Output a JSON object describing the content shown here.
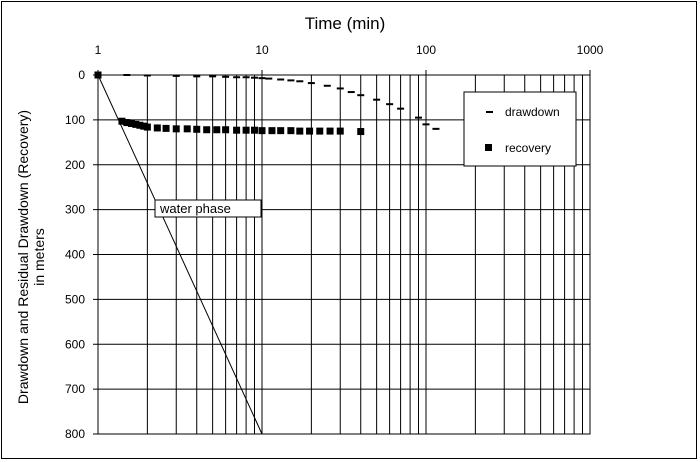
{
  "chart_data": {
    "type": "scatter",
    "title": "",
    "xlabel": "Time (min)",
    "ylabel_line1": "Drawdown and Residual Drawdown (Recovery)",
    "ylabel_line2": "in meters",
    "xscale": "log",
    "xlim": [
      1,
      1000
    ],
    "ylim": [
      0,
      800
    ],
    "y_inverted": true,
    "x_axis_position": "top",
    "grid": "vertical log gridlines and horizontal major gridlines",
    "xticks": [
      "1",
      "10",
      "100",
      "1000"
    ],
    "yticks": [
      "0",
      "100",
      "200",
      "300",
      "400",
      "500",
      "600",
      "700",
      "800"
    ],
    "legend_position": "top-right",
    "series": [
      {
        "name": "drawdown",
        "marker": "dash",
        "color": "#000000",
        "x": [
          1.5,
          2,
          3,
          4,
          5,
          6,
          7,
          8,
          9,
          10,
          11,
          13,
          15,
          17,
          20,
          25,
          30,
          35,
          40,
          50,
          60,
          70,
          90,
          100,
          115
        ],
        "y": [
          0,
          1,
          2,
          3,
          3,
          4,
          5,
          5,
          6,
          7,
          8,
          10,
          12,
          14,
          18,
          24,
          30,
          38,
          45,
          55,
          65,
          75,
          95,
          110,
          120
        ]
      },
      {
        "name": "recovery",
        "marker": "square",
        "color": "#000000",
        "x": [
          1,
          1.4,
          1.5,
          1.6,
          1.7,
          1.8,
          1.9,
          2.0,
          2.3,
          2.6,
          3.0,
          3.5,
          4.0,
          4.6,
          5.3,
          6,
          7,
          8,
          9,
          10,
          11.5,
          13,
          15,
          17,
          19.5,
          22.5,
          26,
          30,
          40
        ],
        "y": [
          0,
          103,
          106,
          108,
          110,
          112,
          114,
          116,
          118,
          119,
          120,
          120,
          121,
          122,
          122,
          122,
          123,
          123,
          123,
          124,
          124,
          124,
          124,
          125,
          125,
          125,
          125,
          125,
          126
        ]
      },
      {
        "name": "",
        "type": "line",
        "color": "#000000",
        "x": [
          1,
          10
        ],
        "y": [
          0,
          800
        ]
      }
    ],
    "annotations": [
      {
        "text": "water phase",
        "x": 3.6,
        "y": 300
      }
    ]
  }
}
